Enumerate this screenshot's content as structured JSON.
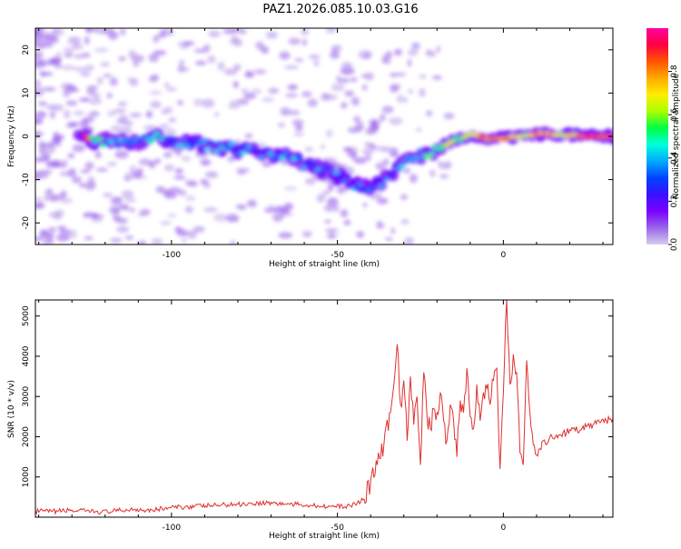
{
  "title": "PAZ1.2026.085.10.03.G16",
  "colors": {
    "snr_line": "#e03030",
    "colorbar_stops": [
      "#d6ccec",
      "#9a66ea",
      "#7a00ff",
      "#3a10ff",
      "#0044ff",
      "#00aaff",
      "#00ffdd",
      "#00ff44",
      "#aaff00",
      "#ffee00",
      "#ffaa00",
      "#ff5500",
      "#ff0040",
      "#ff00a0"
    ]
  },
  "chart_data": [
    {
      "type": "heatmap",
      "name": "spectrogram",
      "title": "PAZ1.2026.085.10.03.G16",
      "xlabel": "Height of straight line (km)",
      "ylabel": "Frequency (Hz)",
      "xlim": [
        -141,
        33
      ],
      "ylim": [
        -25,
        25
      ],
      "xticks": [
        -100,
        -50,
        0
      ],
      "xtick_labels": [
        "-100",
        "-50",
        "0"
      ],
      "yticks": [
        -20,
        -10,
        0,
        10,
        20
      ],
      "ytick_labels": [
        "-20",
        "-10",
        "0",
        "10",
        "20"
      ],
      "ridge": {
        "description": "Normalized spectral amplitude ridge (height km, frequency Hz)",
        "points": [
          [
            -125,
            -1
          ],
          [
            -115,
            -1.5
          ],
          [
            -105,
            -0.5
          ],
          [
            -100,
            -1
          ],
          [
            -90,
            -2
          ],
          [
            -80,
            -3
          ],
          [
            -72,
            -4
          ],
          [
            -65,
            -4.5
          ],
          [
            -58,
            -7
          ],
          [
            -50,
            -9
          ],
          [
            -45,
            -11
          ],
          [
            -40,
            -12
          ],
          [
            -36,
            -10
          ],
          [
            -32,
            -7
          ],
          [
            -28,
            -5
          ],
          [
            -24,
            -4
          ],
          [
            -20,
            -3
          ],
          [
            -15,
            -1
          ],
          [
            -10,
            0.5
          ],
          [
            -5,
            -0.5
          ],
          [
            0,
            -0.5
          ],
          [
            5,
            0
          ],
          [
            10,
            0.5
          ],
          [
            20,
            0.3
          ],
          [
            25,
            0
          ],
          [
            33,
            0
          ]
        ],
        "amplitudes": [
          0.45,
          0.35,
          0.4,
          0.35,
          0.35,
          0.35,
          0.3,
          0.35,
          0.3,
          0.3,
          0.35,
          0.35,
          0.3,
          0.3,
          0.4,
          0.45,
          0.5,
          0.6,
          0.7,
          0.8,
          0.85,
          0.65,
          0.85,
          0.7,
          0.9,
          0.9
        ]
      },
      "colorbar": {
        "label": "Normalized spectral amplitude",
        "range": [
          0,
          1
        ],
        "ticks": [
          0.0,
          0.2,
          0.4,
          0.6,
          0.8
        ],
        "tick_labels": [
          "0.0",
          "0.2",
          "0.4",
          "0.6",
          "0.8"
        ]
      }
    },
    {
      "type": "line",
      "name": "snr",
      "xlabel": "Height of straight line (km)",
      "ylabel": "SNR (10 * v/v)",
      "xlim": [
        -141,
        33
      ],
      "ylim": [
        0,
        5400
      ],
      "xticks": [
        -100,
        -50,
        0
      ],
      "xtick_labels": [
        "-100",
        "-50",
        "0"
      ],
      "yticks": [
        1000,
        2000,
        3000,
        4000,
        5000
      ],
      "ytick_labels": [
        "1000",
        "2000",
        "3000",
        "4000",
        "5000"
      ],
      "series": [
        {
          "name": "SNR",
          "x": [
            -141,
            -136,
            -131,
            -126,
            -121,
            -116,
            -111,
            -106,
            -101,
            -96,
            -91,
            -86,
            -81,
            -76,
            -71,
            -66,
            -61,
            -56,
            -51,
            -46,
            -42,
            -40,
            -38,
            -36,
            -34,
            -33,
            -32,
            -31,
            -30,
            -29,
            -28,
            -27,
            -26,
            -25,
            -24,
            -23,
            -22,
            -21,
            -20,
            -19,
            -18,
            -17,
            -16,
            -15,
            -14,
            -13,
            -12,
            -11,
            -10,
            -9,
            -8,
            -7,
            -6,
            -5,
            -4,
            -3,
            -2,
            -1,
            0,
            1,
            2,
            3,
            4,
            5,
            6,
            7,
            8,
            9,
            10,
            11,
            12,
            13,
            14,
            15,
            17,
            19,
            21,
            23,
            25,
            27,
            29,
            31,
            33
          ],
          "y": [
            150,
            140,
            170,
            150,
            130,
            160,
            200,
            180,
            230,
            260,
            280,
            300,
            320,
            340,
            360,
            330,
            310,
            290,
            260,
            280,
            450,
            900,
            1300,
            1800,
            2600,
            3300,
            4300,
            2800,
            3400,
            1900,
            3500,
            2300,
            3000,
            1300,
            3600,
            2500,
            2200,
            2700,
            2600,
            3100,
            2400,
            1900,
            2800,
            2400,
            1500,
            2900,
            2600,
            3700,
            2500,
            2200,
            3300,
            2400,
            3100,
            3200,
            2800,
            3400,
            3700,
            1200,
            3100,
            5400,
            3300,
            4050,
            3600,
            1600,
            1300,
            3900,
            2600,
            1800,
            1550,
            1700,
            1900,
            1800,
            2000,
            1950,
            2050,
            2100,
            2200,
            2150,
            2250,
            2300,
            2350,
            2400,
            2450
          ]
        }
      ]
    }
  ]
}
